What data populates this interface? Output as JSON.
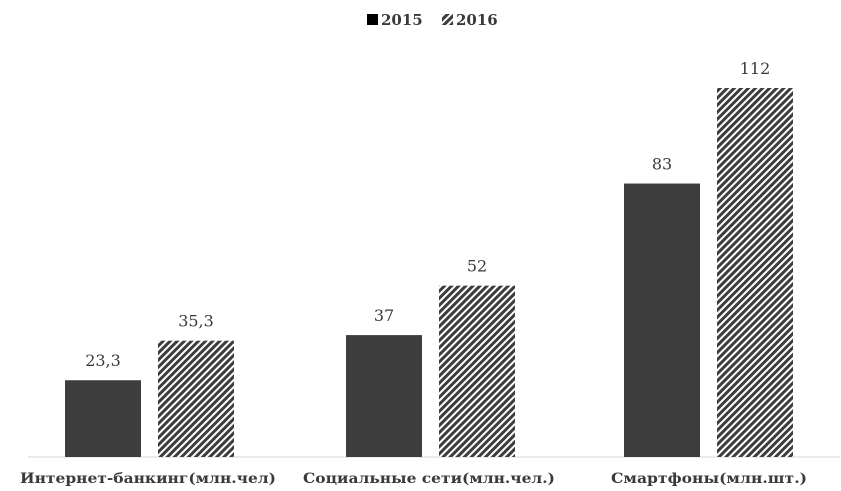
{
  "chart_data": {
    "type": "bar",
    "categories": [
      "Интернет-банкинг(млн.чел)",
      "Социальные сети(млн.чел.)",
      "Смартфоны(млн.шт.)"
    ],
    "series": [
      {
        "name": "2015",
        "values": [
          23.3,
          37,
          83
        ],
        "labels": [
          "23,3",
          "37",
          "83"
        ],
        "color": "#3d3d3d",
        "pattern": "solid"
      },
      {
        "name": "2016",
        "values": [
          35.3,
          52,
          112
        ],
        "labels": [
          "35,3",
          "52",
          "112"
        ],
        "color": "#3d3d3d",
        "pattern": "diagonal-hatch"
      }
    ],
    "title": "",
    "xlabel": "",
    "ylabel": "",
    "ylim": [
      0,
      125
    ],
    "grid": false,
    "legend": "top-center"
  }
}
